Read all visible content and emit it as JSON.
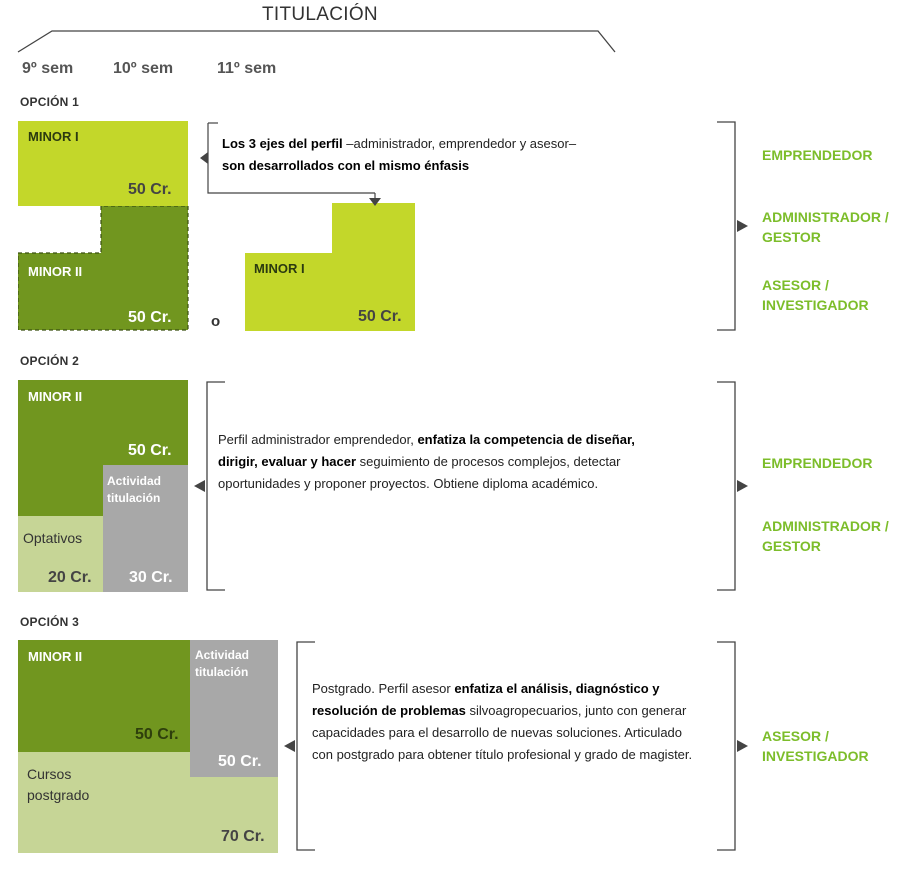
{
  "header": {
    "title": "TITULACIÓN",
    "semesters": [
      "9º sem",
      "10º sem",
      "11º sem"
    ]
  },
  "options": [
    {
      "label": "OPCIÓN 1",
      "blocks": {
        "minor1": {
          "title": "MINOR I",
          "credits": "50 Cr."
        },
        "minor2": {
          "title": "MINOR II",
          "credits": "50 Cr."
        },
        "alt_minor1": {
          "title": "MINOR I",
          "credits": "50 Cr."
        }
      },
      "or_text": "o",
      "desc": {
        "b1": "Los 3 ejes del perfil",
        "t1": " –administrador, emprendedor y asesor– ",
        "b2": "son desarrollados con el mismo énfasis"
      },
      "profiles": [
        "EMPRENDEDOR",
        "ADMINISTRADOR / GESTOR",
        "ASESOR / INVESTIGADOR"
      ]
    },
    {
      "label": "OPCIÓN 2",
      "blocks": {
        "minor2": {
          "title": "MINOR II",
          "credits": "50 Cr."
        },
        "actividad": {
          "title": "Actividad titulación",
          "credits": "30 Cr."
        },
        "optativos": {
          "title": "Optativos",
          "credits": "20 Cr."
        }
      },
      "desc": {
        "t1": "Perfil administrador emprendedor, ",
        "b1": "enfatiza la competencia de diseñar, dirigir, evaluar y hacer",
        "t2": " seguimiento de procesos complejos, detectar oportunidades y proponer proyectos. Obtiene diploma académico."
      },
      "profiles": [
        "EMPRENDEDOR",
        "ADMINISTRADOR / GESTOR"
      ]
    },
    {
      "label": "OPCIÓN 3",
      "blocks": {
        "minor2": {
          "title": "MINOR II",
          "credits": "50 Cr."
        },
        "actividad": {
          "title": "Actividad titulación",
          "credits": "50 Cr."
        },
        "cursos": {
          "title": "Cursos postgrado",
          "credits": "70 Cr."
        }
      },
      "desc": {
        "t1": "Postgrado. Perfil asesor ",
        "b1": "enfatiza el análisis, diagnóstico y resolución de problemas",
        "t2": " silvoagropecuarios, junto con generar capacidades para el desarrollo de nuevas soluciones. Articulado con postgrado para obtener título profesional y grado de magister."
      },
      "profiles": [
        "ASESOR / INVESTIGADOR"
      ]
    }
  ],
  "colors": {
    "light_green": "#c3d72a",
    "dark_green": "#71961f",
    "pale_green": "#c6d596",
    "gray": "#a8a8a8",
    "profile_green": "#7cbd2a"
  }
}
